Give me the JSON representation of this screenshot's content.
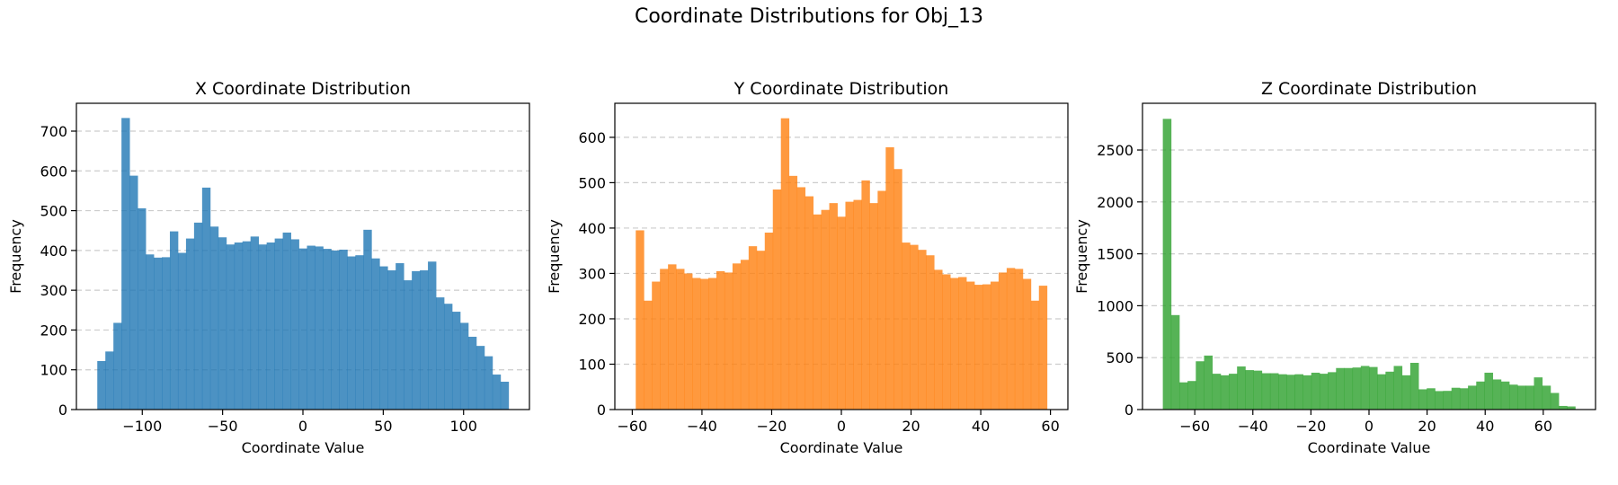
{
  "figure": {
    "title": "Coordinate Distributions for Obj_13"
  },
  "chart_data": [
    {
      "type": "bar",
      "title": "X Coordinate Distribution",
      "xlabel": "Coordinate Value",
      "ylabel": "Frequency",
      "color": "#1f77b4",
      "xlim": [
        -141,
        141
      ],
      "ylim": [
        0,
        770
      ],
      "xticks": [
        -100,
        -50,
        0,
        50,
        100
      ],
      "yticks": [
        0,
        100,
        200,
        300,
        400,
        500,
        600,
        700
      ],
      "grid": "y-dashed",
      "bin_start": -128,
      "bin_end": 128,
      "values": [
        122,
        146,
        218,
        733,
        588,
        506,
        390,
        382,
        383,
        448,
        394,
        430,
        470,
        558,
        460,
        433,
        415,
        420,
        423,
        435,
        415,
        420,
        430,
        445,
        428,
        405,
        412,
        410,
        404,
        400,
        402,
        385,
        388,
        452,
        380,
        360,
        350,
        368,
        325,
        348,
        350,
        372,
        282,
        266,
        246,
        218,
        183,
        160,
        134,
        88,
        70
      ]
    },
    {
      "type": "bar",
      "title": "Y Coordinate Distribution",
      "xlabel": "Coordinate Value",
      "ylabel": "Frequency",
      "color": "#ff7f0e",
      "xlim": [
        -65,
        65
      ],
      "ylim": [
        0,
        675
      ],
      "xticks": [
        -60,
        -40,
        -20,
        0,
        20,
        40,
        60
      ],
      "yticks": [
        0,
        100,
        200,
        300,
        400,
        500,
        600
      ],
      "grid": "y-dashed",
      "bin_start": -59,
      "bin_end": 59,
      "values": [
        395,
        240,
        282,
        310,
        320,
        310,
        300,
        290,
        288,
        290,
        305,
        302,
        322,
        330,
        360,
        350,
        390,
        485,
        642,
        515,
        490,
        470,
        430,
        440,
        455,
        425,
        458,
        462,
        505,
        455,
        482,
        578,
        530,
        368,
        363,
        352,
        340,
        308,
        298,
        290,
        292,
        282,
        275,
        276,
        282,
        302,
        312,
        310,
        288,
        240,
        273
      ]
    },
    {
      "type": "bar",
      "title": "Z Coordinate Distribution",
      "xlabel": "Coordinate Value",
      "ylabel": "Frequency",
      "color": "#2ca02c",
      "xlim": [
        -78,
        78
      ],
      "ylim": [
        0,
        2950
      ],
      "xticks": [
        -60,
        -40,
        -20,
        0,
        20,
        40,
        60
      ],
      "yticks": [
        0,
        500,
        1000,
        1500,
        2000,
        2500
      ],
      "grid": "y-dashed",
      "bin_start": -71,
      "bin_end": 71,
      "values": [
        2800,
        910,
        262,
        275,
        465,
        520,
        345,
        330,
        345,
        415,
        380,
        375,
        350,
        350,
        340,
        335,
        340,
        330,
        355,
        345,
        360,
        400,
        400,
        405,
        420,
        410,
        340,
        365,
        420,
        330,
        450,
        195,
        205,
        178,
        180,
        210,
        205,
        230,
        270,
        355,
        290,
        270,
        240,
        230,
        230,
        310,
        230,
        160,
        35,
        30
      ]
    }
  ]
}
